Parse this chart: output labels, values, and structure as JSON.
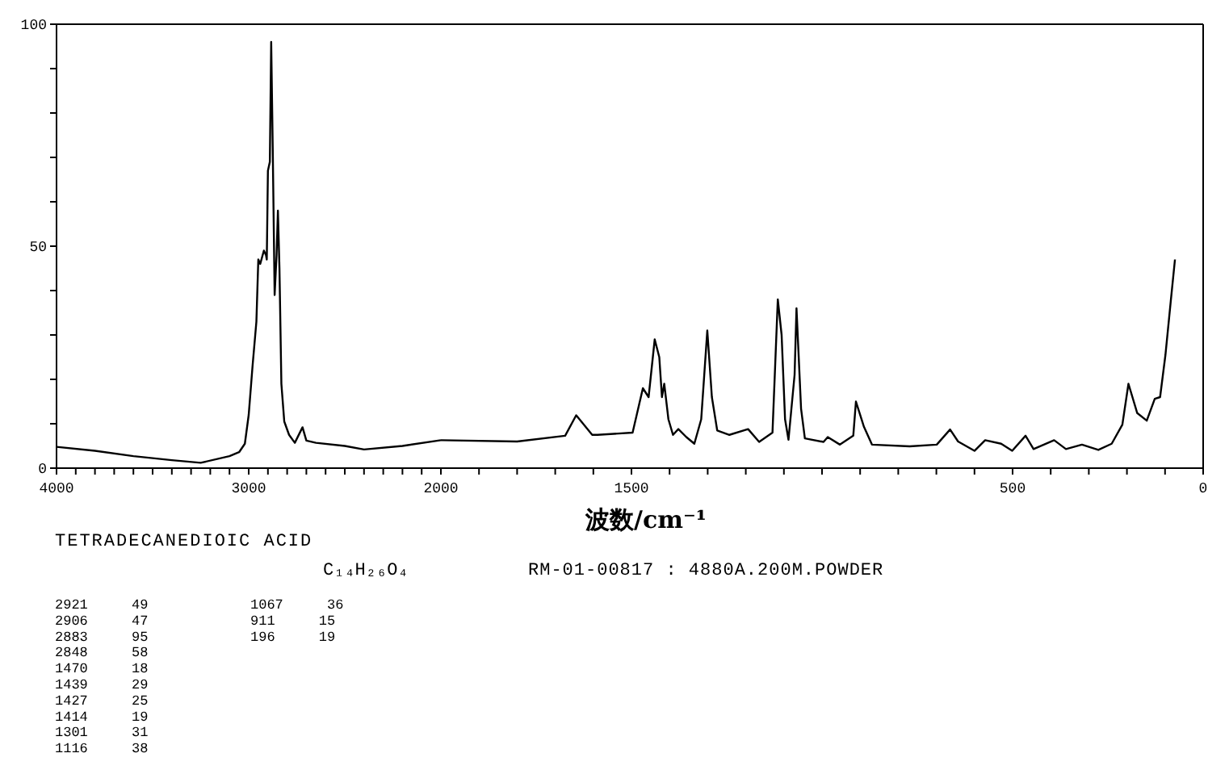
{
  "chart_data": [
    {
      "type": "line",
      "title": "TETRADECANEDIOIC ACID",
      "subtitle": "C₁₄H₂₆O₄",
      "annotations": [
        "RM-01-00817 : 4880A.200M.POWDER",
        "2921 49",
        "2906 47",
        "2883 95",
        "2848 58",
        "1470 18",
        "1439 29",
        "1427 25",
        "1414 19",
        "1301 31",
        "1116 38",
        "1067 36",
        "911 15",
        "196 19"
      ],
      "x": [
        4000,
        3800,
        3600,
        3400,
        3250,
        3100,
        3050,
        3020,
        3000,
        2980,
        2960,
        2950,
        2940,
        2921,
        2910,
        2906,
        2900,
        2890,
        2883,
        2875,
        2865,
        2855,
        2848,
        2840,
        2830,
        2815,
        2790,
        2760,
        2720,
        2700,
        2650,
        2500,
        2400,
        2200,
        2000
      ],
      "series": [
        {
          "color": "#000000",
          "values": [
            4.8,
            3.9,
            2.7,
            1.8,
            1.2,
            2.7,
            3.6,
            5.5,
            12,
            23,
            33,
            47,
            46,
            49,
            48,
            47,
            67,
            69,
            96,
            72,
            39,
            48,
            58,
            45,
            19,
            10.5,
            7.5,
            5.7,
            9.2,
            6.2,
            5.7,
            5,
            4.2,
            5,
            6.3
          ]
        }
      ],
      "xlim": [
        4000,
        2000
      ],
      "xticks": [
        4000,
        {
          "value": 3900,
          "label": null
        },
        {
          "value": 3800,
          "label": null
        },
        {
          "value": 3700,
          "label": null
        },
        {
          "value": 3600,
          "label": null
        },
        {
          "value": 3500,
          "label": null
        },
        {
          "value": 3400,
          "label": null
        },
        {
          "value": 3300,
          "label": null
        },
        {
          "value": 3200,
          "label": null
        },
        {
          "value": 3100,
          "label": null
        },
        3000,
        {
          "value": 2900,
          "label": null
        },
        {
          "value": 2800,
          "label": null
        },
        {
          "value": 2700,
          "label": null
        },
        {
          "value": 2600,
          "label": null
        },
        {
          "value": 2500,
          "label": null
        },
        {
          "value": 2400,
          "label": null
        },
        {
          "value": 2300,
          "label": null
        },
        {
          "value": 2200,
          "label": null
        },
        {
          "value": 2100,
          "label": null
        },
        2000
      ],
      "ylim": [
        0,
        100
      ],
      "yticks": [
        0,
        {
          "value": 10,
          "label": null
        },
        {
          "value": 20,
          "label": null
        },
        {
          "value": 30,
          "label": null
        },
        {
          "value": 40,
          "label": null
        },
        50,
        {
          "value": 60,
          "label": null
        },
        {
          "value": 70,
          "label": null
        },
        {
          "value": 80,
          "label": null
        },
        {
          "value": 90,
          "label": null
        },
        100
      ]
    },
    {
      "type": "line",
      "xlabel": "波数/cm⁻¹",
      "x": [
        2000,
        1800,
        1674,
        1645,
        1603,
        1589,
        1497,
        1470,
        1455,
        1439,
        1427,
        1420,
        1414,
        1403,
        1391,
        1377,
        1356,
        1335,
        1317,
        1301,
        1289,
        1275,
        1243,
        1194,
        1165,
        1130,
        1116,
        1106,
        1097,
        1088,
        1072,
        1067,
        1055,
        1045,
        996,
        985,
        953,
        918,
        911,
        890,
        869,
        770,
        699,
        664,
        643,
        600,
        572,
        530,
        501,
        466,
        445,
        391,
        360,
        318,
        275,
        240,
        212,
        196,
        173,
        148,
        127,
        113,
        99,
        85,
        74
      ],
      "series": [
        {
          "color": "#000000",
          "values": [
            6.3,
            6,
            7.3,
            11.9,
            7.5,
            7.5,
            8,
            18,
            16,
            29,
            25,
            16,
            19,
            11,
            7.5,
            8.8,
            7,
            5.5,
            11,
            31,
            16,
            8.5,
            7.5,
            8.8,
            5.9,
            8,
            38,
            30,
            11,
            6.4,
            21,
            36,
            13.4,
            6.7,
            5.9,
            7,
            5.3,
            7.3,
            15,
            9.3,
            5.3,
            4.9,
            5.3,
            8.7,
            6,
            3.9,
            6.3,
            5.5,
            3.9,
            7.3,
            4.3,
            6.3,
            4.3,
            5.3,
            4.1,
            5.5,
            9.8,
            19,
            12.4,
            10.7,
            15.6,
            16,
            25.5,
            37.6,
            47
          ]
        }
      ],
      "xlim": [
        2000,
        0
      ],
      "xticks": [
        {
          "value": 1900,
          "label": null
        },
        {
          "value": 1800,
          "label": null
        },
        {
          "value": 1700,
          "label": null
        },
        {
          "value": 1600,
          "label": null
        },
        1500,
        {
          "value": 1400,
          "label": null
        },
        {
          "value": 1300,
          "label": null
        },
        {
          "value": 1200,
          "label": null
        },
        {
          "value": 1100,
          "label": null
        },
        {
          "value": 1000,
          "label": null
        },
        {
          "value": 900,
          "label": null
        },
        {
          "value": 800,
          "label": null
        },
        {
          "value": 700,
          "label": null
        },
        {
          "value": 600,
          "label": null
        },
        500,
        {
          "value": 400,
          "label": null
        },
        {
          "value": 300,
          "label": null
        },
        {
          "value": 200,
          "label": null
        },
        {
          "value": 100,
          "label": null
        },
        0
      ],
      "ylim": [
        0,
        100
      ],
      "tick_labels": "x"
    }
  ]
}
